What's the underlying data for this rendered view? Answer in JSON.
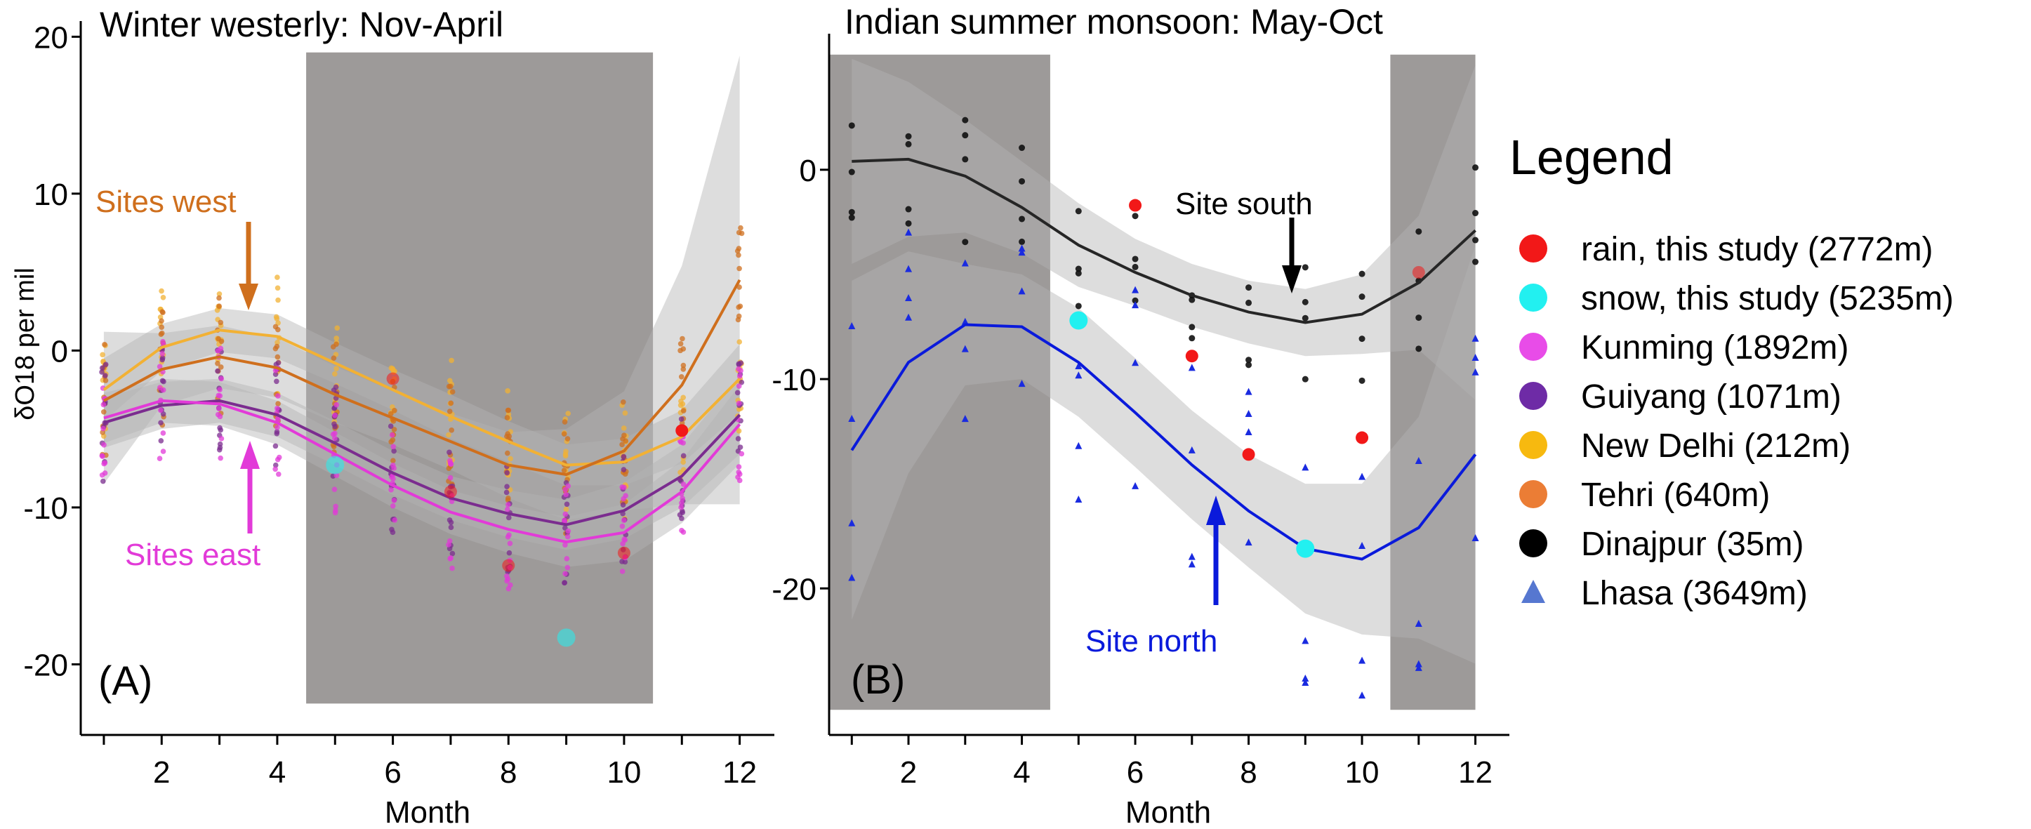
{
  "chart_data": [
    {
      "type": "line",
      "panel": "A",
      "title": "Winter westerly: Nov-April",
      "panel_label": "(A)",
      "xlabel": "Month",
      "ylabel": "δO18 per mil",
      "xlim": [
        0.6,
        12.6
      ],
      "ylim": [
        -24.5,
        21
      ],
      "xticks": [
        2,
        4,
        6,
        8,
        10,
        12
      ],
      "yticks": [
        -20,
        -10,
        0,
        10,
        20
      ],
      "shaded_region": {
        "x": [
          4.5,
          10.5
        ],
        "y": [
          -22.5,
          19
        ]
      },
      "series": [
        {
          "name": "New Delhi trend",
          "color": "#f2b134",
          "x": [
            1,
            2,
            3,
            4,
            5,
            6,
            7,
            8,
            9,
            10,
            11,
            12
          ],
          "values": [
            -2.5,
            0.2,
            1.3,
            0.9,
            -0.8,
            -2.5,
            -4.2,
            -5.8,
            -7.3,
            -7.1,
            -5.5,
            -1.8
          ],
          "band": [
            [
              -4.5,
              -0.5
            ],
            [
              -1.3,
              1.7
            ],
            [
              -0.1,
              2.7
            ],
            [
              -0.5,
              2.3
            ],
            [
              -2.1,
              0.5
            ],
            [
              -3.8,
              -1.2
            ],
            [
              -5.6,
              -2.8
            ],
            [
              -7.1,
              -4.5
            ],
            [
              -8.6,
              -6.0
            ],
            [
              -8.6,
              -5.6
            ],
            [
              -7.2,
              -3.8
            ],
            [
              -4.0,
              0.4
            ]
          ]
        },
        {
          "name": "Tehri trend",
          "color": "#cf6f1d",
          "x": [
            1,
            2,
            3,
            4,
            5,
            6,
            7,
            8,
            9,
            10,
            11,
            12
          ],
          "values": [
            -3.2,
            -1.2,
            -0.4,
            -1.1,
            -2.8,
            -4.3,
            -5.8,
            -7.3,
            -7.9,
            -6.4,
            -2.2,
            4.5
          ],
          "band": [
            [
              -8.5,
              1.2
            ],
            [
              -3.5,
              1.1
            ],
            [
              -2.4,
              1.6
            ],
            [
              -3.0,
              0.8
            ],
            [
              -4.6,
              -1.0
            ],
            [
              -6.0,
              -2.6
            ],
            [
              -7.6,
              -4.0
            ],
            [
              -9.4,
              -5.2
            ],
            [
              -10.8,
              -5.0
            ],
            [
              -10.2,
              -2.6
            ],
            [
              -9.8,
              5.4
            ],
            [
              -9.8,
              18.8
            ]
          ]
        },
        {
          "name": "Guiyang trend",
          "color": "#7b2c8f",
          "x": [
            1,
            2,
            3,
            4,
            5,
            6,
            7,
            8,
            9,
            10,
            11,
            12
          ],
          "values": [
            -4.6,
            -3.5,
            -3.2,
            -4.1,
            -5.9,
            -7.8,
            -9.4,
            -10.4,
            -11.1,
            -10.2,
            -8.0,
            -4.1
          ],
          "band": [
            [
              -6.2,
              -3.0
            ],
            [
              -5.0,
              -2.0
            ],
            [
              -4.6,
              -1.8
            ],
            [
              -5.5,
              -2.7
            ],
            [
              -7.3,
              -4.5
            ],
            [
              -9.2,
              -6.4
            ],
            [
              -10.8,
              -8.0
            ],
            [
              -11.9,
              -8.9
            ],
            [
              -12.7,
              -9.5
            ],
            [
              -12.0,
              -8.4
            ],
            [
              -10.0,
              -6.0
            ],
            [
              -6.6,
              -1.6
            ]
          ]
        },
        {
          "name": "Kunming trend",
          "color": "#e23ad8",
          "x": [
            1,
            2,
            3,
            4,
            5,
            6,
            7,
            8,
            9,
            10,
            11,
            12
          ],
          "values": [
            -4.3,
            -3.2,
            -3.4,
            -4.6,
            -6.6,
            -8.6,
            -10.3,
            -11.4,
            -12.2,
            -11.6,
            -9.0,
            -4.7
          ],
          "band": [
            [
              -5.9,
              -2.7
            ],
            [
              -4.6,
              -1.8
            ],
            [
              -4.8,
              -2.0
            ],
            [
              -6.0,
              -3.2
            ],
            [
              -8.0,
              -5.2
            ],
            [
              -10.0,
              -7.2
            ],
            [
              -11.7,
              -8.9
            ],
            [
              -12.9,
              -9.9
            ],
            [
              -13.8,
              -10.6
            ],
            [
              -13.4,
              -9.8
            ],
            [
              -11.0,
              -7.0
            ],
            [
              -7.2,
              -2.2
            ]
          ]
        }
      ],
      "this_study_points": [
        {
          "type": "rain",
          "x": [
            6,
            7,
            8,
            10,
            11
          ],
          "y": [
            -1.8,
            -9.0,
            -13.7,
            -12.9,
            -5.1
          ]
        },
        {
          "type": "snow",
          "x": [
            5,
            9
          ],
          "y": [
            -7.3,
            -18.3
          ]
        }
      ],
      "annotations": [
        {
          "text": "Sites west",
          "color": "#cf6f1d"
        },
        {
          "text": "Sites east",
          "color": "#e23ad8"
        }
      ]
    },
    {
      "type": "line",
      "panel": "B",
      "title": "Indian summer monsoon: May-Oct",
      "panel_label": "(B)",
      "xlabel": "Month",
      "ylabel": "",
      "xlim": [
        0.6,
        12.6
      ],
      "ylim": [
        -27,
        6.5
      ],
      "xticks": [
        2,
        4,
        6,
        8,
        10,
        12
      ],
      "yticks": [
        -20,
        -10,
        0
      ],
      "shaded_regions": [
        {
          "x": [
            0.6,
            4.5
          ],
          "y": [
            -25.8,
            5.5
          ]
        },
        {
          "x": [
            10.5,
            12
          ],
          "y": [
            -25.8,
            5.5
          ]
        }
      ],
      "series": [
        {
          "name": "Dinajpur trend",
          "color": "#262626",
          "x": [
            1,
            2,
            3,
            4,
            5,
            6,
            7,
            8,
            9,
            10,
            11,
            12
          ],
          "values": [
            0.4,
            0.5,
            -0.3,
            -1.8,
            -3.6,
            -4.9,
            -6.0,
            -6.8,
            -7.3,
            -6.9,
            -5.4,
            -2.9
          ],
          "band": [
            [
              -4.5,
              5.3
            ],
            [
              -3.2,
              4.2
            ],
            [
              -3.0,
              2.4
            ],
            [
              -4.0,
              0.4
            ],
            [
              -5.6,
              -1.6
            ],
            [
              -6.5,
              -3.3
            ],
            [
              -7.5,
              -4.5
            ],
            [
              -8.3,
              -5.3
            ],
            [
              -8.9,
              -5.7
            ],
            [
              -8.8,
              -5.0
            ],
            [
              -8.6,
              -2.2
            ],
            [
              -11.0,
              5.0
            ]
          ]
        },
        {
          "name": "Lhasa trend",
          "color": "#0a1adb",
          "x": [
            1,
            2,
            3,
            4,
            5,
            6,
            7,
            8,
            9,
            10,
            11,
            12
          ],
          "values": [
            -13.4,
            -9.2,
            -7.4,
            -7.5,
            -9.2,
            -11.6,
            -14.1,
            -16.3,
            -18.1,
            -18.6,
            -17.1,
            -13.6
          ],
          "band": [
            [
              -21.5,
              -5.3
            ],
            [
              -14.5,
              -3.9
            ],
            [
              -10.3,
              -4.5
            ],
            [
              -10.0,
              -5.0
            ],
            [
              -11.8,
              -6.6
            ],
            [
              -14.2,
              -9.0
            ],
            [
              -16.7,
              -11.5
            ],
            [
              -19.0,
              -13.6
            ],
            [
              -21.2,
              -15.0
            ],
            [
              -22.2,
              -15.0
            ],
            [
              -22.4,
              -11.8
            ],
            [
              -23.6,
              -3.6
            ]
          ]
        }
      ],
      "this_study_points": [
        {
          "type": "rain",
          "x": [
            6,
            7,
            8,
            10,
            11
          ],
          "y": [
            -1.7,
            -8.9,
            -13.6,
            -12.8,
            -4.9
          ]
        },
        {
          "type": "snow",
          "x": [
            5,
            9
          ],
          "y": [
            -7.2,
            -18.1
          ]
        }
      ],
      "annotations": [
        {
          "text": "Site south",
          "color": "#000000"
        },
        {
          "text": "Site north",
          "color": "#0a1adb"
        }
      ]
    }
  ],
  "legend": {
    "title": "Legend",
    "items": [
      {
        "label": "rain, this study (2772m)",
        "color": "#f21818",
        "shape": "circle"
      },
      {
        "label": "snow, this study (5235m)",
        "color": "#22f0f0",
        "shape": "circle"
      },
      {
        "label": "Kunming (1892m)",
        "color": "#e84ce8",
        "shape": "circle"
      },
      {
        "label": "Guiyang (1071m)",
        "color": "#6e2ba6",
        "shape": "circle"
      },
      {
        "label": "New Delhi (212m)",
        "color": "#f7b90f",
        "shape": "circle"
      },
      {
        "label": "Tehri (640m)",
        "color": "#eb7d35",
        "shape": "circle"
      },
      {
        "label": "Dinajpur (35m)",
        "color": "#000000",
        "shape": "circle"
      },
      {
        "label": "Lhasa (3649m)",
        "color": "#5677d0",
        "shape": "triangle"
      }
    ]
  }
}
